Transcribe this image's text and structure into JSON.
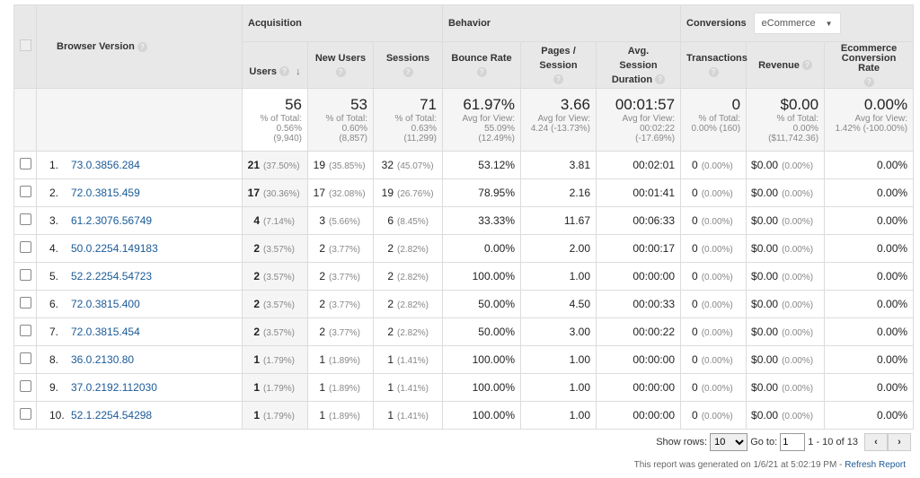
{
  "header": {
    "dimension": "Browser Version",
    "groups": {
      "acquisition": "Acquisition",
      "behavior": "Behavior",
      "conversions": "Conversions"
    },
    "conversion_select": "eCommerce",
    "columns": {
      "users": "Users",
      "new_users": "New Users",
      "sessions": "Sessions",
      "bounce_rate": "Bounce Rate",
      "pages_session": "Pages / Session",
      "avg_duration": "Avg. Session Duration",
      "transactions": "Transactions",
      "revenue": "Revenue",
      "ecr": "Ecommerce Conversion Rate"
    }
  },
  "totals": {
    "users": {
      "value": "56",
      "l1": "% of Total:",
      "l2": "0.56%",
      "l3": "(9,940)"
    },
    "new_users": {
      "value": "53",
      "l1": "% of Total:",
      "l2": "0.60%",
      "l3": "(8,857)"
    },
    "sessions": {
      "value": "71",
      "l1": "% of Total:",
      "l2": "0.63%",
      "l3": "(11,299)"
    },
    "bounce_rate": {
      "value": "61.97%",
      "l1": "Avg for View:",
      "l2": "55.09% (12.49%)",
      "l3": ""
    },
    "pages_session": {
      "value": "3.66",
      "l1": "Avg for View:",
      "l2": "4.24 (-13.73%)",
      "l3": ""
    },
    "avg_duration": {
      "value": "00:01:57",
      "l1": "Avg for View:",
      "l2": "00:02:22",
      "l3": "(-17.69%)"
    },
    "transactions": {
      "value": "0",
      "l1": "% of Total:",
      "l2": "0.00% (160)",
      "l3": ""
    },
    "revenue": {
      "value": "$0.00",
      "l1": "% of Total:",
      "l2": "0.00%",
      "l3": "($11,742.36)"
    },
    "ecr": {
      "value": "0.00%",
      "l1": "Avg for View:",
      "l2": "1.42% (-100.00%)",
      "l3": ""
    }
  },
  "rows": [
    {
      "n": "1.",
      "browser": "73.0.3856.284",
      "users": "21",
      "users_pct": "(37.50%)",
      "new_users": "19",
      "new_users_pct": "(35.85%)",
      "sessions": "32",
      "sessions_pct": "(45.07%)",
      "bounce": "53.12%",
      "pages": "3.81",
      "duration": "00:02:01",
      "trans": "0",
      "trans_pct": "(0.00%)",
      "revenue": "$0.00",
      "revenue_pct": "(0.00%)",
      "ecr": "0.00%"
    },
    {
      "n": "2.",
      "browser": "72.0.3815.459",
      "users": "17",
      "users_pct": "(30.36%)",
      "new_users": "17",
      "new_users_pct": "(32.08%)",
      "sessions": "19",
      "sessions_pct": "(26.76%)",
      "bounce": "78.95%",
      "pages": "2.16",
      "duration": "00:01:41",
      "trans": "0",
      "trans_pct": "(0.00%)",
      "revenue": "$0.00",
      "revenue_pct": "(0.00%)",
      "ecr": "0.00%"
    },
    {
      "n": "3.",
      "browser": "61.2.3076.56749",
      "users": "4",
      "users_pct": "(7.14%)",
      "new_users": "3",
      "new_users_pct": "(5.66%)",
      "sessions": "6",
      "sessions_pct": "(8.45%)",
      "bounce": "33.33%",
      "pages": "11.67",
      "duration": "00:06:33",
      "trans": "0",
      "trans_pct": "(0.00%)",
      "revenue": "$0.00",
      "revenue_pct": "(0.00%)",
      "ecr": "0.00%"
    },
    {
      "n": "4.",
      "browser": "50.0.2254.149183",
      "users": "2",
      "users_pct": "(3.57%)",
      "new_users": "2",
      "new_users_pct": "(3.77%)",
      "sessions": "2",
      "sessions_pct": "(2.82%)",
      "bounce": "0.00%",
      "pages": "2.00",
      "duration": "00:00:17",
      "trans": "0",
      "trans_pct": "(0.00%)",
      "revenue": "$0.00",
      "revenue_pct": "(0.00%)",
      "ecr": "0.00%"
    },
    {
      "n": "5.",
      "browser": "52.2.2254.54723",
      "users": "2",
      "users_pct": "(3.57%)",
      "new_users": "2",
      "new_users_pct": "(3.77%)",
      "sessions": "2",
      "sessions_pct": "(2.82%)",
      "bounce": "100.00%",
      "pages": "1.00",
      "duration": "00:00:00",
      "trans": "0",
      "trans_pct": "(0.00%)",
      "revenue": "$0.00",
      "revenue_pct": "(0.00%)",
      "ecr": "0.00%"
    },
    {
      "n": "6.",
      "browser": "72.0.3815.400",
      "users": "2",
      "users_pct": "(3.57%)",
      "new_users": "2",
      "new_users_pct": "(3.77%)",
      "sessions": "2",
      "sessions_pct": "(2.82%)",
      "bounce": "50.00%",
      "pages": "4.50",
      "duration": "00:00:33",
      "trans": "0",
      "trans_pct": "(0.00%)",
      "revenue": "$0.00",
      "revenue_pct": "(0.00%)",
      "ecr": "0.00%"
    },
    {
      "n": "7.",
      "browser": "72.0.3815.454",
      "users": "2",
      "users_pct": "(3.57%)",
      "new_users": "2",
      "new_users_pct": "(3.77%)",
      "sessions": "2",
      "sessions_pct": "(2.82%)",
      "bounce": "50.00%",
      "pages": "3.00",
      "duration": "00:00:22",
      "trans": "0",
      "trans_pct": "(0.00%)",
      "revenue": "$0.00",
      "revenue_pct": "(0.00%)",
      "ecr": "0.00%"
    },
    {
      "n": "8.",
      "browser": "36.0.2130.80",
      "users": "1",
      "users_pct": "(1.79%)",
      "new_users": "1",
      "new_users_pct": "(1.89%)",
      "sessions": "1",
      "sessions_pct": "(1.41%)",
      "bounce": "100.00%",
      "pages": "1.00",
      "duration": "00:00:00",
      "trans": "0",
      "trans_pct": "(0.00%)",
      "revenue": "$0.00",
      "revenue_pct": "(0.00%)",
      "ecr": "0.00%"
    },
    {
      "n": "9.",
      "browser": "37.0.2192.112030",
      "users": "1",
      "users_pct": "(1.79%)",
      "new_users": "1",
      "new_users_pct": "(1.89%)",
      "sessions": "1",
      "sessions_pct": "(1.41%)",
      "bounce": "100.00%",
      "pages": "1.00",
      "duration": "00:00:00",
      "trans": "0",
      "trans_pct": "(0.00%)",
      "revenue": "$0.00",
      "revenue_pct": "(0.00%)",
      "ecr": "0.00%"
    },
    {
      "n": "10.",
      "browser": "52.1.2254.54298",
      "users": "1",
      "users_pct": "(1.79%)",
      "new_users": "1",
      "new_users_pct": "(1.89%)",
      "sessions": "1",
      "sessions_pct": "(1.41%)",
      "bounce": "100.00%",
      "pages": "1.00",
      "duration": "00:00:00",
      "trans": "0",
      "trans_pct": "(0.00%)",
      "revenue": "$0.00",
      "revenue_pct": "(0.00%)",
      "ecr": "0.00%"
    }
  ],
  "footer": {
    "show_rows_label": "Show rows:",
    "show_rows_value": "10",
    "goto_label": "Go to:",
    "goto_value": "1",
    "range": "1 - 10 of 13",
    "prev": "‹",
    "next": "›",
    "generated": "This report was generated on 1/6/21 at 5:02:19 PM - ",
    "refresh": "Refresh Report"
  },
  "help_glyph": "?",
  "sort_glyph": "↓"
}
